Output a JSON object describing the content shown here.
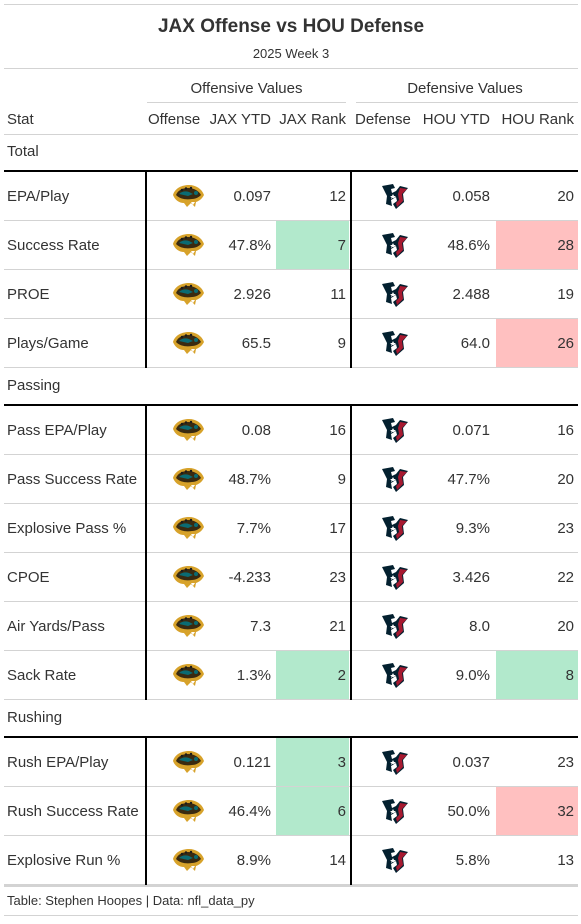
{
  "title": "JAX Offense vs HOU Defense",
  "subtitle": "2025 Week 3",
  "groups": {
    "offense": "Offensive Values",
    "defense": "Defensive Values"
  },
  "columns": {
    "stat": "Stat",
    "offense": "Offense",
    "off_ytd": "JAX YTD",
    "off_rank": "JAX Rank",
    "defense": "Defense",
    "def_ytd": "HOU YTD",
    "def_rank": "HOU Rank"
  },
  "colors": {
    "good": "#b2e9cc",
    "bad": "#ffc0c0",
    "jaguar_teal": "#0a6b73",
    "jaguar_gold": "#d7a22a",
    "texans_navy": "#03202f",
    "texans_red": "#a71930"
  },
  "icons": {
    "offense": "jaguars-logo",
    "defense": "texans-logo"
  },
  "sections": [
    {
      "name": "Total",
      "rows": [
        {
          "stat": "EPA/Play",
          "off_ytd": "0.097",
          "off_rank": "12",
          "off_hl": "",
          "def_ytd": "0.058",
          "def_rank": "20",
          "def_hl": ""
        },
        {
          "stat": "Success Rate",
          "off_ytd": "47.8%",
          "off_rank": "7",
          "off_hl": "good",
          "def_ytd": "48.6%",
          "def_rank": "28",
          "def_hl": "bad"
        },
        {
          "stat": "PROE",
          "off_ytd": "2.926",
          "off_rank": "11",
          "off_hl": "",
          "def_ytd": "2.488",
          "def_rank": "19",
          "def_hl": ""
        },
        {
          "stat": "Plays/Game",
          "off_ytd": "65.5",
          "off_rank": "9",
          "off_hl": "",
          "def_ytd": "64.0",
          "def_rank": "26",
          "def_hl": "bad"
        }
      ]
    },
    {
      "name": "Passing",
      "rows": [
        {
          "stat": "Pass EPA/Play",
          "off_ytd": "0.08",
          "off_rank": "16",
          "off_hl": "",
          "def_ytd": "0.071",
          "def_rank": "16",
          "def_hl": ""
        },
        {
          "stat": "Pass Success Rate",
          "off_ytd": "48.7%",
          "off_rank": "9",
          "off_hl": "",
          "def_ytd": "47.7%",
          "def_rank": "20",
          "def_hl": ""
        },
        {
          "stat": "Explosive Pass %",
          "off_ytd": "7.7%",
          "off_rank": "17",
          "off_hl": "",
          "def_ytd": "9.3%",
          "def_rank": "23",
          "def_hl": ""
        },
        {
          "stat": "CPOE",
          "off_ytd": "-4.233",
          "off_rank": "23",
          "off_hl": "",
          "def_ytd": "3.426",
          "def_rank": "22",
          "def_hl": ""
        },
        {
          "stat": "Air Yards/Pass",
          "off_ytd": "7.3",
          "off_rank": "21",
          "off_hl": "",
          "def_ytd": "8.0",
          "def_rank": "20",
          "def_hl": ""
        },
        {
          "stat": "Sack Rate",
          "off_ytd": "1.3%",
          "off_rank": "2",
          "off_hl": "good",
          "def_ytd": "9.0%",
          "def_rank": "8",
          "def_hl": "good"
        }
      ]
    },
    {
      "name": "Rushing",
      "rows": [
        {
          "stat": "Rush EPA/Play",
          "off_ytd": "0.121",
          "off_rank": "3",
          "off_hl": "good",
          "def_ytd": "0.037",
          "def_rank": "23",
          "def_hl": ""
        },
        {
          "stat": "Rush Success Rate",
          "off_ytd": "46.4%",
          "off_rank": "6",
          "off_hl": "good",
          "def_ytd": "50.0%",
          "def_rank": "32",
          "def_hl": "bad"
        },
        {
          "stat": "Explosive Run %",
          "off_ytd": "8.9%",
          "off_rank": "14",
          "off_hl": "",
          "def_ytd": "5.8%",
          "def_rank": "13",
          "def_hl": ""
        }
      ]
    }
  ],
  "footer": "Table: Stephen Hoopes | Data: nfl_data_py"
}
